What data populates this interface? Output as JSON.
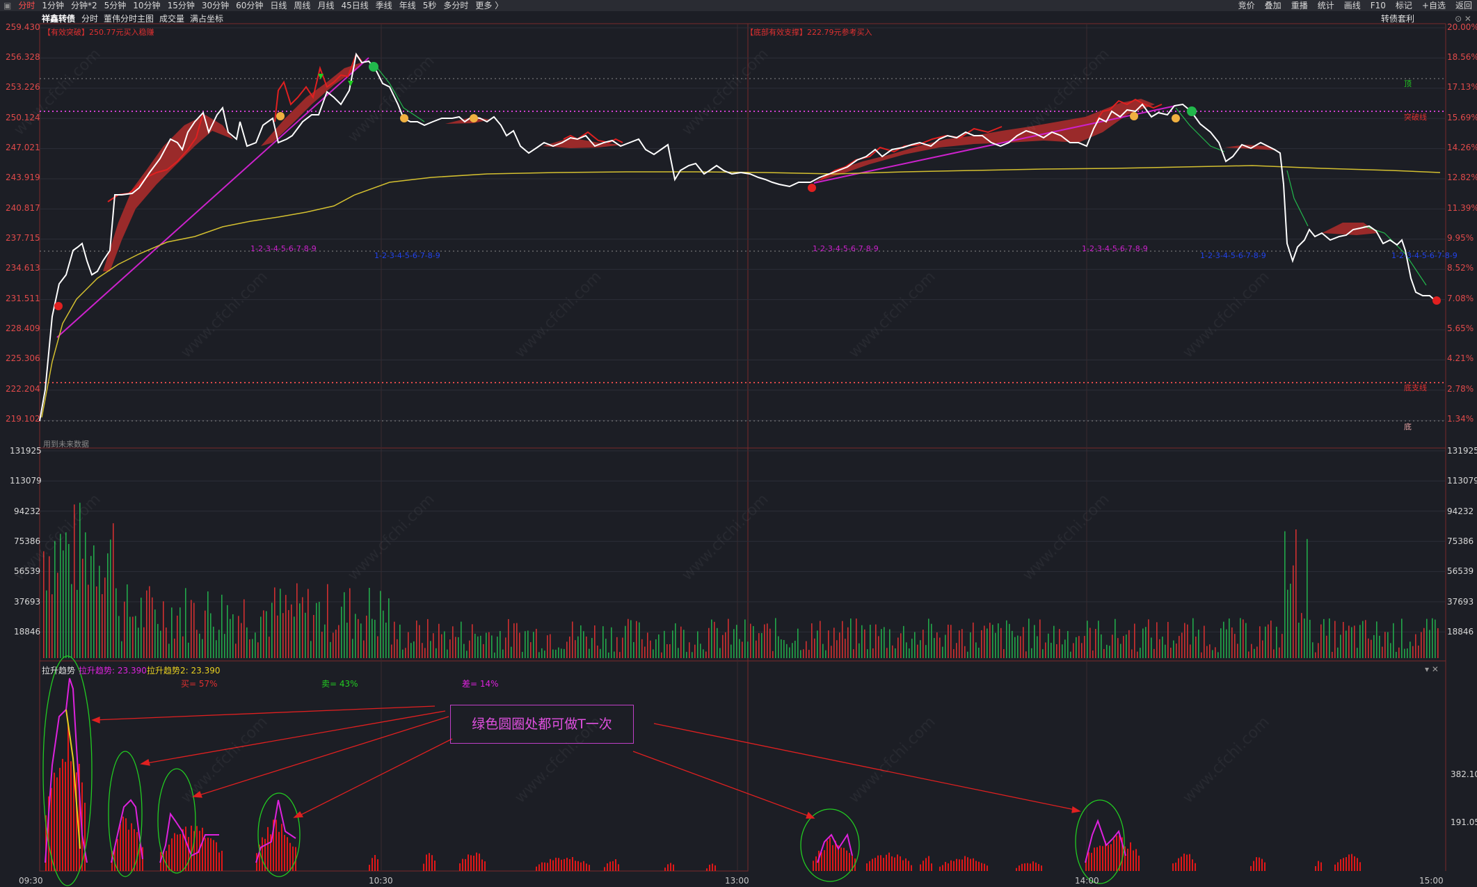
{
  "topbar": {
    "timeframes": [
      "分时",
      "1分钟",
      "分钟*2",
      "5分钟",
      "10分钟",
      "15分钟",
      "30分钟",
      "60分钟",
      "日线",
      "周线",
      "月线",
      "45日线",
      "季线",
      "年线",
      "5秒",
      "多分时",
      "更多 〉"
    ],
    "right_buttons": [
      "竞价",
      "叠加",
      "重播",
      "统计",
      "画线",
      "F10",
      "标记",
      "+自选",
      "返回"
    ]
  },
  "title": {
    "stock_name": "祥鑫转债",
    "menu": [
      "分时",
      "董伟分时主图",
      "成交量",
      "满占坐标"
    ],
    "right_label": "转债套利",
    "right_icons": "⊙ ✕"
  },
  "main_chart": {
    "price_labels": [
      "259.430",
      "256.328",
      "253.226",
      "250.124",
      "247.021",
      "243.919",
      "240.817",
      "237.715",
      "234.613",
      "231.511",
      "228.409",
      "225.306",
      "222.204",
      "219.102"
    ],
    "pct_labels": [
      "20.00%",
      "18.56%",
      "17.13%",
      "15.69%",
      "14.26%",
      "12.82%",
      "11.39%",
      "9.95%",
      "8.52%",
      "7.08%",
      "5.65%",
      "4.21%",
      "2.78%",
      "1.34%"
    ],
    "note_left": "【有效突破】250.77元买入稳赚",
    "note_mid": "【底部有效支撑】222.79元参考买入",
    "label_top": "顶",
    "label_break": "突破线",
    "label_support": "底支线",
    "label_bottom": "底",
    "future_note": "用到未来数据",
    "seq_labels": [
      "1-2-3-4-5-6-7-8-9",
      "1-2-3-4-5-6-7-8-9",
      "1-2-3-4-5-6-7-8-9",
      "1-2-3-4-5-6-7-8-9",
      "1-2-3-4-5-6-7-8-9",
      "1-2-3-4-5-6-7-8-9"
    ]
  },
  "volume_chart": {
    "labels": [
      "131925",
      "113079",
      "94232",
      "75386",
      "56539",
      "37693",
      "18846"
    ]
  },
  "indicator": {
    "name": "拉升趋势",
    "value1": "拉升趋势: 23.390",
    "value2": "拉升趋势2: 23.390",
    "buy": "买= 57%",
    "sell": "卖= 43%",
    "diff": "差= 14%",
    "labels": [
      "382.10",
      "191.05"
    ],
    "callout": "绿色圆圈处都可做T一次",
    "icons": "▾ ✕"
  },
  "time_axis": [
    "09:30",
    "10:30",
    "13:00",
    "14:00",
    "15:00"
  ],
  "watermark": "www.cfchi.com",
  "colors": {
    "up": "#e03030",
    "down": "#22b84c",
    "accent": "#ff4040",
    "avg": "#d4c030",
    "trend": "#cc22cc"
  }
}
